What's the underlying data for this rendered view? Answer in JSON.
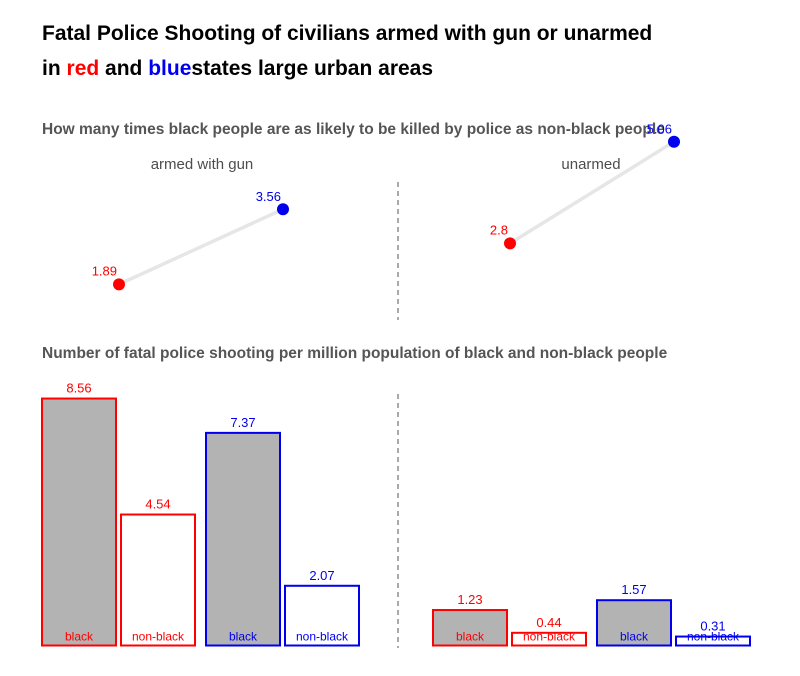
{
  "title": {
    "line1": "Fatal Police Shooting of civilians armed with gun or unarmed",
    "line2_prefix": "in",
    "line2_red": "red",
    "line2_and": "and",
    "line2_blue": "blue",
    "line2_suffix": "states large urban areas"
  },
  "colors": {
    "red": "#ff0000",
    "blue": "#0000ee",
    "bar_fill": "#b3b3b3",
    "segment": "#e6e6e6",
    "divider": "#555555"
  },
  "chart_data": [
    {
      "type": "dumbbell",
      "title": "How many times black people are as likely to be killed by police as non-black people",
      "panels": [
        {
          "label": "armed with gun",
          "red": 1.89,
          "blue": 3.56,
          "red_text": "1.89",
          "blue_text": "3.56"
        },
        {
          "label": "unarmed",
          "red": 2.8,
          "blue": 5.06,
          "red_text": "2.8",
          "blue_text": "5.06"
        }
      ]
    },
    {
      "type": "bar",
      "title": "Number of fatal police shooting per million population of black and non-black people",
      "panels": [
        {
          "bars": [
            {
              "state": "red",
              "group": "black",
              "value": 8.56,
              "label": "8.56"
            },
            {
              "state": "red",
              "group": "non-black",
              "value": 4.54,
              "label": "4.54"
            },
            {
              "state": "blue",
              "group": "black",
              "value": 7.37,
              "label": "7.37"
            },
            {
              "state": "blue",
              "group": "non-black",
              "value": 2.07,
              "label": "2.07"
            }
          ]
        },
        {
          "bars": [
            {
              "state": "red",
              "group": "black",
              "value": 1.23,
              "label": "1.23"
            },
            {
              "state": "red",
              "group": "non-black",
              "value": 0.44,
              "label": "0.44"
            },
            {
              "state": "blue",
              "group": "black",
              "value": 1.57,
              "label": "1.57"
            },
            {
              "state": "blue",
              "group": "non-black",
              "value": 0.31,
              "label": "0.31"
            }
          ]
        }
      ]
    }
  ]
}
